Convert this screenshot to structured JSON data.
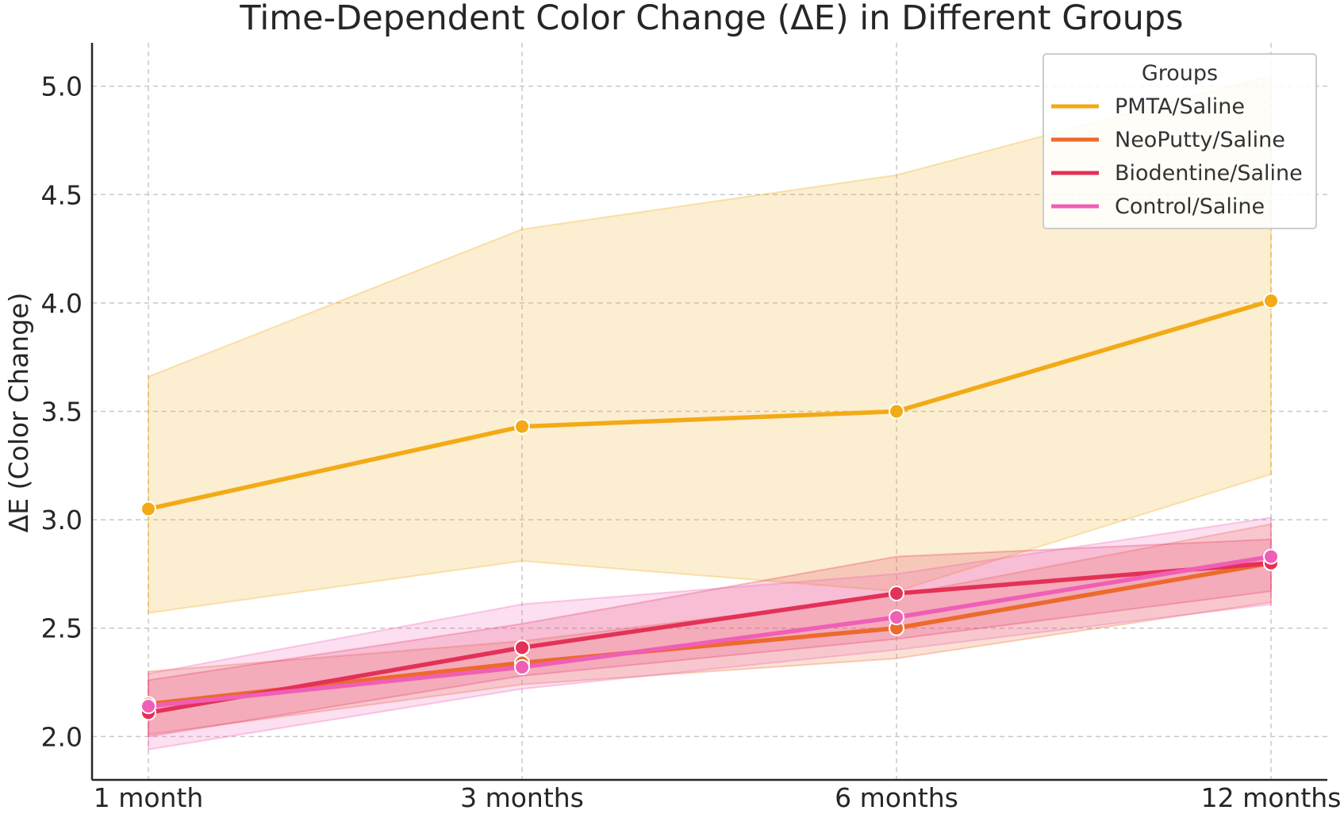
{
  "chart_data": {
    "type": "line",
    "title": "Time-Dependent Color Change (ΔE) in Different Groups",
    "xlabel": "",
    "ylabel": "ΔE (Color Change)",
    "categories": [
      "1 month",
      "3 months",
      "6 months",
      "12 months"
    ],
    "ylim": [
      1.8,
      5.2
    ],
    "yticks": [
      2.0,
      2.5,
      3.0,
      3.5,
      4.0,
      4.5,
      5.0
    ],
    "ytick_labels": [
      "2.0",
      "2.5",
      "3.0",
      "3.5",
      "4.0",
      "4.5",
      "5.0"
    ],
    "grid": true,
    "legend": {
      "title": "Groups",
      "placement": "top-right"
    },
    "series": [
      {
        "name": "PMTA/Saline",
        "color": "#F2AA16",
        "values": [
          3.05,
          3.43,
          3.5,
          4.01
        ],
        "band_lower": [
          2.57,
          2.81,
          2.67,
          3.21
        ],
        "band_upper": [
          3.66,
          4.34,
          4.59,
          5.05
        ]
      },
      {
        "name": "NeoPutty/Saline",
        "color": "#EC6A2D",
        "values": [
          2.15,
          2.34,
          2.5,
          2.8
        ],
        "band_lower": [
          2.01,
          2.24,
          2.36,
          2.62
        ],
        "band_upper": [
          2.3,
          2.44,
          2.65,
          2.98
        ]
      },
      {
        "name": "Biodentine/Saline",
        "color": "#E33158",
        "values": [
          2.11,
          2.41,
          2.66,
          2.8
        ],
        "band_lower": [
          2.0,
          2.28,
          2.45,
          2.67
        ],
        "band_upper": [
          2.26,
          2.52,
          2.83,
          2.91
        ]
      },
      {
        "name": "Control/Saline",
        "color": "#EF5FB5",
        "values": [
          2.14,
          2.32,
          2.55,
          2.83
        ],
        "band_lower": [
          1.94,
          2.22,
          2.4,
          2.61
        ],
        "band_upper": [
          2.29,
          2.61,
          2.75,
          3.01
        ]
      }
    ]
  }
}
